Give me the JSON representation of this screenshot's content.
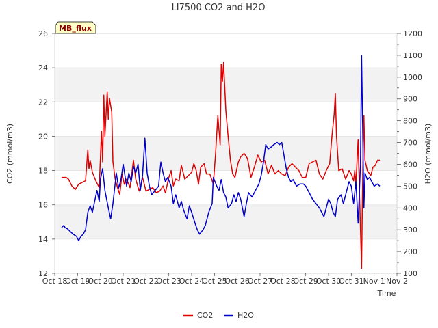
{
  "chart_data": {
    "type": "line",
    "title": "LI7500 CO2 and H2O",
    "xlabel": "Time",
    "ylabel": "CO2 (mmol/m3)",
    "y2label": "H2O (mmol/m3)",
    "badge": "MB_flux",
    "x_tick_labels": [
      "Oct 18",
      "Oct 19",
      "Oct 20",
      "Oct 21",
      "Oct 22",
      "Oct 23",
      "Oct 24",
      "Oct 25",
      "Oct 26",
      "Oct 27",
      "Oct 28",
      "Oct 29",
      "Oct 30",
      "Oct 31",
      "Nov 1",
      "Nov 2"
    ],
    "xlim": [
      0,
      15
    ],
    "ylim": [
      12,
      26
    ],
    "y_ticks": [
      12,
      14,
      16,
      18,
      20,
      22,
      24,
      26
    ],
    "y2lim": [
      100,
      1200
    ],
    "y2_ticks": [
      100,
      200,
      300,
      400,
      500,
      600,
      700,
      800,
      900,
      1000,
      1100,
      1200
    ],
    "grid": "horizontal bands",
    "legend_position": "bottom-center",
    "series": [
      {
        "name": "CO2",
        "axis": "left",
        "color": "#e00000",
        "points": [
          [
            0.3,
            17.6
          ],
          [
            0.5,
            17.6
          ],
          [
            0.6,
            17.5
          ],
          [
            0.75,
            17.1
          ],
          [
            0.9,
            16.9
          ],
          [
            1.05,
            17.2
          ],
          [
            1.2,
            17.3
          ],
          [
            1.35,
            17.4
          ],
          [
            1.45,
            19.2
          ],
          [
            1.5,
            18.1
          ],
          [
            1.55,
            18.6
          ],
          [
            1.65,
            17.9
          ],
          [
            1.8,
            17.4
          ],
          [
            1.95,
            17.0
          ],
          [
            2.05,
            20.3
          ],
          [
            2.1,
            18.5
          ],
          [
            2.15,
            22.4
          ],
          [
            2.2,
            20.0
          ],
          [
            2.3,
            22.6
          ],
          [
            2.35,
            21.0
          ],
          [
            2.4,
            22.2
          ],
          [
            2.5,
            21.4
          ],
          [
            2.55,
            18.5
          ],
          [
            2.65,
            17.5
          ],
          [
            2.75,
            17.0
          ],
          [
            2.85,
            16.6
          ],
          [
            2.95,
            17.8
          ],
          [
            3.05,
            17.2
          ],
          [
            3.15,
            17.5
          ],
          [
            3.3,
            17.0
          ],
          [
            3.45,
            18.6
          ],
          [
            3.55,
            17.5
          ],
          [
            3.7,
            16.8
          ],
          [
            3.85,
            17.6
          ],
          [
            4.0,
            16.8
          ],
          [
            4.15,
            16.9
          ],
          [
            4.3,
            17.0
          ],
          [
            4.45,
            16.7
          ],
          [
            4.6,
            16.8
          ],
          [
            4.75,
            17.1
          ],
          [
            4.85,
            16.7
          ],
          [
            5.0,
            17.6
          ],
          [
            5.1,
            18.0
          ],
          [
            5.2,
            17.1
          ],
          [
            5.3,
            17.5
          ],
          [
            5.45,
            17.4
          ],
          [
            5.55,
            18.3
          ],
          [
            5.7,
            17.5
          ],
          [
            5.85,
            17.7
          ],
          [
            6.0,
            17.9
          ],
          [
            6.1,
            18.4
          ],
          [
            6.2,
            18.0
          ],
          [
            6.3,
            17.2
          ],
          [
            6.4,
            18.2
          ],
          [
            6.55,
            18.4
          ],
          [
            6.65,
            17.8
          ],
          [
            6.8,
            17.8
          ],
          [
            6.95,
            17.2
          ],
          [
            7.05,
            19.0
          ],
          [
            7.15,
            21.2
          ],
          [
            7.25,
            19.5
          ],
          [
            7.3,
            24.2
          ],
          [
            7.35,
            23.2
          ],
          [
            7.4,
            24.3
          ],
          [
            7.5,
            21.5
          ],
          [
            7.6,
            20.0
          ],
          [
            7.7,
            18.6
          ],
          [
            7.8,
            17.8
          ],
          [
            7.9,
            17.6
          ],
          [
            8.05,
            18.5
          ],
          [
            8.15,
            18.8
          ],
          [
            8.3,
            19.0
          ],
          [
            8.45,
            18.7
          ],
          [
            8.6,
            17.6
          ],
          [
            8.75,
            18.2
          ],
          [
            8.9,
            18.9
          ],
          [
            9.05,
            18.5
          ],
          [
            9.2,
            18.6
          ],
          [
            9.35,
            17.8
          ],
          [
            9.5,
            18.3
          ],
          [
            9.65,
            17.8
          ],
          [
            9.8,
            18.0
          ],
          [
            9.95,
            17.8
          ],
          [
            10.1,
            17.7
          ],
          [
            10.25,
            18.2
          ],
          [
            10.4,
            18.4
          ],
          [
            10.55,
            18.2
          ],
          [
            10.7,
            18.0
          ],
          [
            10.85,
            17.6
          ],
          [
            11.0,
            17.6
          ],
          [
            11.15,
            18.4
          ],
          [
            11.3,
            18.5
          ],
          [
            11.45,
            18.6
          ],
          [
            11.6,
            17.8
          ],
          [
            11.75,
            17.5
          ],
          [
            11.9,
            18.0
          ],
          [
            12.05,
            18.4
          ],
          [
            12.15,
            20.0
          ],
          [
            12.25,
            21.3
          ],
          [
            12.3,
            22.5
          ],
          [
            12.35,
            20.0
          ],
          [
            12.45,
            18.0
          ],
          [
            12.6,
            18.1
          ],
          [
            12.75,
            17.5
          ],
          [
            12.9,
            18.0
          ],
          [
            13.0,
            17.8
          ],
          [
            13.1,
            17.4
          ],
          [
            13.15,
            18.0
          ],
          [
            13.2,
            17.2
          ],
          [
            13.3,
            19.8
          ],
          [
            13.35,
            17.0
          ],
          [
            13.45,
            12.3
          ],
          [
            13.5,
            17.9
          ],
          [
            13.55,
            21.2
          ],
          [
            13.6,
            18.6
          ],
          [
            13.7,
            18.0
          ],
          [
            13.85,
            17.7
          ],
          [
            13.95,
            18.2
          ],
          [
            14.05,
            18.3
          ],
          [
            14.15,
            18.6
          ],
          [
            14.25,
            18.6
          ]
        ]
      },
      {
        "name": "H2O",
        "axis": "right",
        "color": "#0000cc",
        "points": [
          [
            0.3,
            310
          ],
          [
            0.4,
            320
          ],
          [
            0.45,
            310
          ],
          [
            0.55,
            305
          ],
          [
            0.65,
            295
          ],
          [
            0.8,
            280
          ],
          [
            0.95,
            270
          ],
          [
            1.05,
            250
          ],
          [
            1.15,
            270
          ],
          [
            1.25,
            280
          ],
          [
            1.35,
            300
          ],
          [
            1.45,
            380
          ],
          [
            1.55,
            410
          ],
          [
            1.65,
            380
          ],
          [
            1.75,
            430
          ],
          [
            1.85,
            480
          ],
          [
            1.95,
            430
          ],
          [
            2.0,
            530
          ],
          [
            2.1,
            580
          ],
          [
            2.2,
            480
          ],
          [
            2.35,
            400
          ],
          [
            2.45,
            350
          ],
          [
            2.55,
            420
          ],
          [
            2.7,
            560
          ],
          [
            2.8,
            490
          ],
          [
            2.9,
            530
          ],
          [
            3.0,
            600
          ],
          [
            3.15,
            500
          ],
          [
            3.25,
            560
          ],
          [
            3.35,
            520
          ],
          [
            3.45,
            590
          ],
          [
            3.55,
            560
          ],
          [
            3.65,
            600
          ],
          [
            3.75,
            480
          ],
          [
            3.85,
            550
          ],
          [
            3.95,
            720
          ],
          [
            4.05,
            560
          ],
          [
            4.15,
            500
          ],
          [
            4.25,
            460
          ],
          [
            4.4,
            480
          ],
          [
            4.55,
            500
          ],
          [
            4.65,
            610
          ],
          [
            4.75,
            560
          ],
          [
            4.85,
            520
          ],
          [
            4.95,
            540
          ],
          [
            5.1,
            500
          ],
          [
            5.2,
            420
          ],
          [
            5.3,
            460
          ],
          [
            5.45,
            400
          ],
          [
            5.55,
            430
          ],
          [
            5.65,
            390
          ],
          [
            5.8,
            350
          ],
          [
            5.9,
            410
          ],
          [
            6.0,
            380
          ],
          [
            6.15,
            330
          ],
          [
            6.25,
            300
          ],
          [
            6.35,
            280
          ],
          [
            6.5,
            300
          ],
          [
            6.6,
            320
          ],
          [
            6.75,
            380
          ],
          [
            6.9,
            420
          ],
          [
            6.95,
            540
          ],
          [
            7.1,
            500
          ],
          [
            7.2,
            480
          ],
          [
            7.3,
            530
          ],
          [
            7.4,
            470
          ],
          [
            7.5,
            450
          ],
          [
            7.6,
            400
          ],
          [
            7.75,
            420
          ],
          [
            7.85,
            460
          ],
          [
            7.95,
            430
          ],
          [
            8.05,
            470
          ],
          [
            8.15,
            440
          ],
          [
            8.3,
            360
          ],
          [
            8.4,
            420
          ],
          [
            8.5,
            470
          ],
          [
            8.65,
            450
          ],
          [
            8.8,
            480
          ],
          [
            8.95,
            510
          ],
          [
            9.05,
            550
          ],
          [
            9.15,
            610
          ],
          [
            9.25,
            690
          ],
          [
            9.35,
            670
          ],
          [
            9.5,
            680
          ],
          [
            9.6,
            690
          ],
          [
            9.75,
            700
          ],
          [
            9.85,
            690
          ],
          [
            9.95,
            700
          ],
          [
            10.05,
            640
          ],
          [
            10.15,
            580
          ],
          [
            10.25,
            540
          ],
          [
            10.35,
            520
          ],
          [
            10.45,
            530
          ],
          [
            10.6,
            500
          ],
          [
            10.75,
            510
          ],
          [
            10.9,
            510
          ],
          [
            11.0,
            500
          ],
          [
            11.15,
            470
          ],
          [
            11.3,
            440
          ],
          [
            11.45,
            420
          ],
          [
            11.6,
            400
          ],
          [
            11.7,
            380
          ],
          [
            11.8,
            360
          ],
          [
            11.9,
            400
          ],
          [
            12.0,
            440
          ],
          [
            12.1,
            420
          ],
          [
            12.2,
            380
          ],
          [
            12.3,
            360
          ],
          [
            12.4,
            440
          ],
          [
            12.55,
            460
          ],
          [
            12.65,
            420
          ],
          [
            12.8,
            480
          ],
          [
            12.9,
            520
          ],
          [
            13.0,
            500
          ],
          [
            13.1,
            420
          ],
          [
            13.2,
            520
          ],
          [
            13.3,
            330
          ],
          [
            13.4,
            600
          ],
          [
            13.45,
            1100
          ],
          [
            13.55,
            400
          ],
          [
            13.6,
            560
          ],
          [
            13.7,
            530
          ],
          [
            13.8,
            540
          ],
          [
            13.9,
            520
          ],
          [
            14.0,
            500
          ],
          [
            14.15,
            510
          ],
          [
            14.25,
            500
          ]
        ]
      }
    ]
  }
}
